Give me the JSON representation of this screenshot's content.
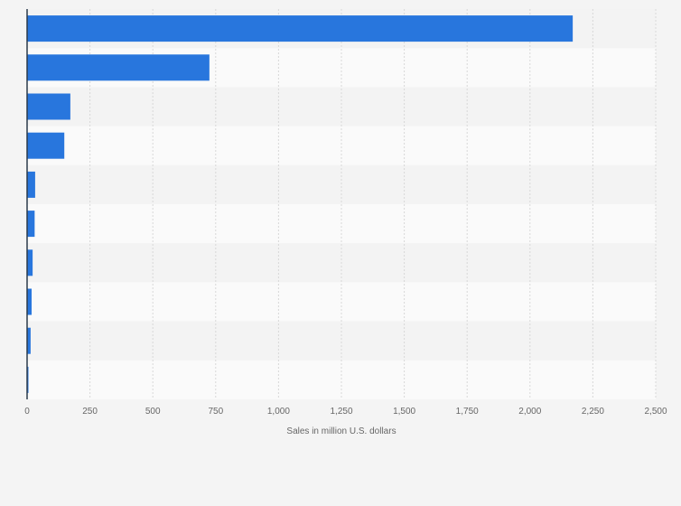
{
  "chart_data": {
    "type": "bar",
    "orientation": "horizontal",
    "categories": [
      "",
      "",
      "",
      "",
      "",
      "",
      "",
      "",
      "",
      ""
    ],
    "values": [
      2170,
      725,
      172,
      148,
      32,
      30,
      22,
      18,
      14,
      3
    ],
    "xlabel": "Sales in million U.S. dollars",
    "ylabel": "",
    "xlim": [
      0,
      2500
    ],
    "x_ticks": [
      0,
      250,
      500,
      750,
      1000,
      1250,
      1500,
      1750,
      2000,
      2250,
      2500
    ],
    "x_tick_labels": [
      "0",
      "250",
      "500",
      "750",
      "1,000",
      "1,250",
      "1,500",
      "1,750",
      "2,000",
      "2,250",
      "2,500"
    ],
    "grid": true,
    "legend": "none",
    "colors": {
      "bar": "#2876dd",
      "band_light": "#fafafa",
      "band_dark": "#f3f3f3",
      "background": "#f4f4f4",
      "gridline": "#d8d8d8",
      "axis": "#2b3a4a",
      "text": "#666666"
    }
  }
}
